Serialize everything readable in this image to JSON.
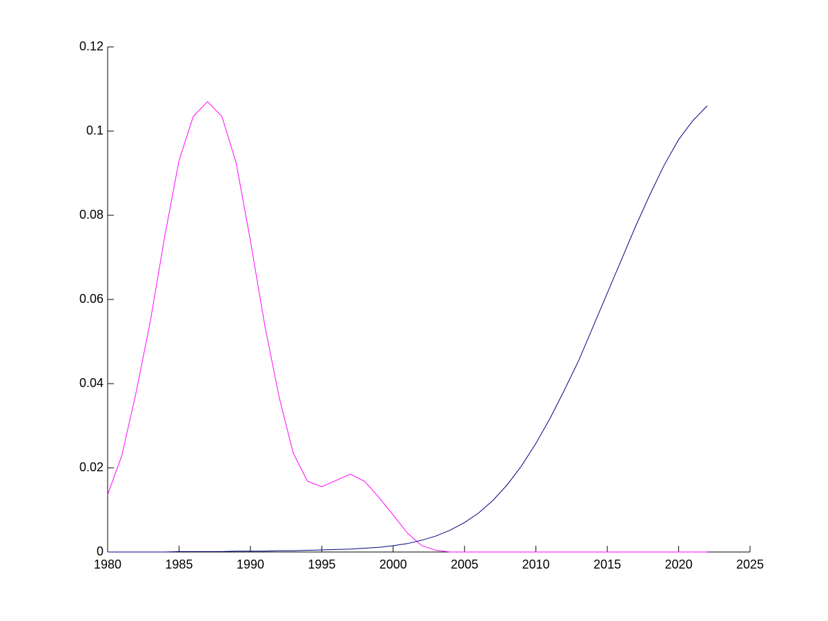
{
  "chart_data": {
    "type": "line",
    "x": [
      1980,
      1981,
      1982,
      1983,
      1984,
      1985,
      1986,
      1987,
      1988,
      1989,
      1990,
      1991,
      1992,
      1993,
      1994,
      1995,
      1996,
      1997,
      1998,
      1999,
      2000,
      2001,
      2002,
      2003,
      2004,
      2005,
      2006,
      2007,
      2008,
      2009,
      2010,
      2011,
      2012,
      2013,
      2014,
      2015,
      2016,
      2017,
      2018,
      2019,
      2020,
      2021,
      2022
    ],
    "series": [
      {
        "color": "#ff00ff",
        "values": [
          0.0136,
          0.023,
          0.038,
          0.055,
          0.075,
          0.093,
          0.1035,
          0.107,
          0.1035,
          0.0925,
          0.074,
          0.054,
          0.037,
          0.0235,
          0.0168,
          0.0155,
          0.017,
          0.0185,
          0.0168,
          0.013,
          0.0088,
          0.0045,
          0.0015,
          0.0004,
          0,
          0,
          0,
          0,
          0,
          0,
          0,
          0,
          0,
          0,
          0,
          0,
          0,
          0,
          0,
          0,
          0,
          0,
          0
        ]
      },
      {
        "color": "#000080",
        "values": [
          0,
          0,
          0,
          0,
          0,
          0.0001,
          0.0001,
          0.0001,
          0.0001,
          0.0002,
          0.0002,
          0.0002,
          0.0003,
          0.0003,
          0.0004,
          0.0005,
          0.0006,
          0.0007,
          0.0009,
          0.0011,
          0.0015,
          0.002,
          0.0028,
          0.0038,
          0.0052,
          0.007,
          0.0093,
          0.0123,
          0.016,
          0.0205,
          0.0258,
          0.0318,
          0.0385,
          0.0455,
          0.0535,
          0.0615,
          0.0695,
          0.0775,
          0.085,
          0.092,
          0.098,
          0.1025,
          0.106
        ]
      }
    ],
    "xlim": [
      1980,
      2025
    ],
    "xticks": [
      1980,
      1985,
      1990,
      1995,
      2000,
      2005,
      2010,
      2015,
      2020,
      2025
    ],
    "ylim": [
      0,
      0.12
    ],
    "yticks": [
      0,
      0.02,
      0.04,
      0.06,
      0.08,
      0.1,
      0.12
    ],
    "grid": false
  }
}
